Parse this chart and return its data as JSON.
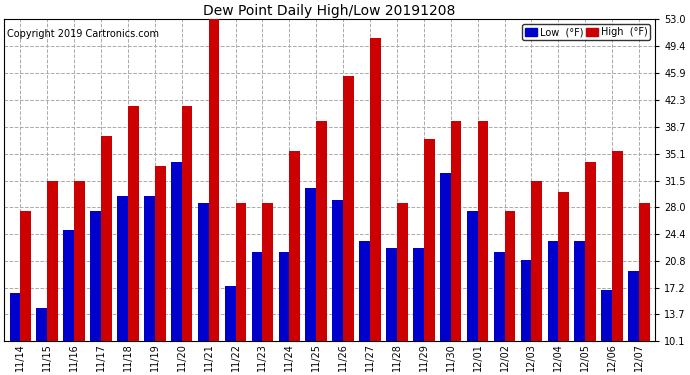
{
  "title": "Dew Point Daily High/Low 20191208",
  "copyright": "Copyright 2019 Cartronics.com",
  "legend_low": "Low  (°F)",
  "legend_high": "High  (°F)",
  "dates": [
    "11/14",
    "11/15",
    "11/16",
    "11/17",
    "11/18",
    "11/19",
    "11/20",
    "11/21",
    "11/22",
    "11/23",
    "11/24",
    "11/25",
    "11/26",
    "11/27",
    "11/28",
    "11/29",
    "11/30",
    "12/01",
    "12/02",
    "12/03",
    "12/04",
    "12/05",
    "12/06",
    "12/07"
  ],
  "low": [
    16.5,
    14.5,
    25.0,
    27.5,
    29.5,
    29.5,
    34.0,
    28.5,
    17.5,
    22.0,
    22.0,
    30.5,
    29.0,
    23.5,
    22.5,
    22.5,
    32.5,
    27.5,
    22.0,
    21.0,
    23.5,
    23.5,
    17.0,
    19.5
  ],
  "high": [
    27.5,
    31.5,
    31.5,
    37.5,
    41.5,
    33.5,
    41.5,
    53.0,
    28.5,
    28.5,
    35.5,
    39.5,
    45.5,
    50.5,
    28.5,
    37.0,
    39.5,
    39.5,
    27.5,
    31.5,
    30.0,
    34.0,
    35.5,
    28.5
  ],
  "ylim_min": 10.1,
  "ylim_max": 53.0,
  "yticks": [
    10.1,
    13.7,
    17.2,
    20.8,
    24.4,
    28.0,
    31.5,
    35.1,
    38.7,
    42.3,
    45.9,
    49.4,
    53.0
  ],
  "color_low": "#0000cc",
  "color_high": "#cc0000",
  "background_color": "#ffffff",
  "grid_color": "#aaaaaa",
  "bar_width": 0.4,
  "title_fontsize": 10,
  "tick_fontsize": 7,
  "copyright_fontsize": 7
}
